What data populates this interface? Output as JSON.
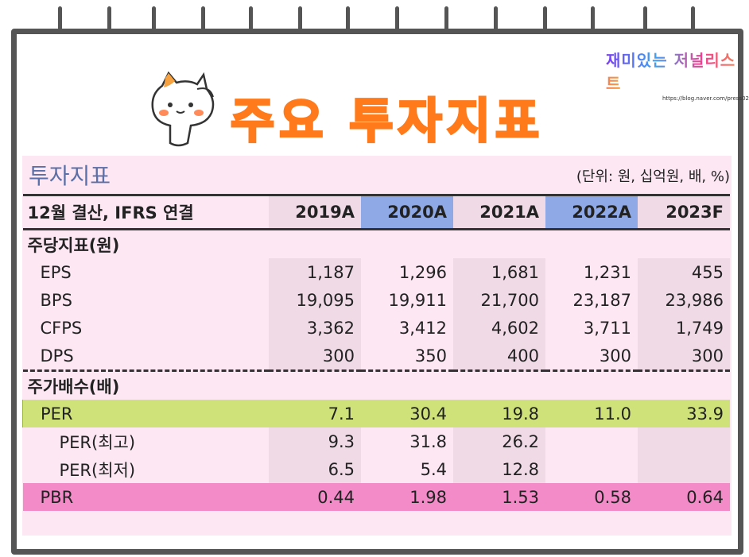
{
  "header": {
    "title": "주요 투자지표",
    "logo_text": "재미있는 저널리스트",
    "logo_url": "https://blog.naver.com/press02"
  },
  "panel": {
    "title": "투자지표",
    "unit": "(단위: 원, 십억원, 배, %)"
  },
  "table": {
    "header_label": "12월 결산, IFRS 연결",
    "years": [
      "2019A",
      "2020A",
      "2021A",
      "2022A",
      "2023F"
    ],
    "section1": "주당지표(원)",
    "section2": "주가배수(배)",
    "rows": [
      {
        "label": "EPS",
        "values": [
          "1,187",
          "1,296",
          "1,681",
          "1,231",
          "455"
        ]
      },
      {
        "label": "BPS",
        "values": [
          "19,095",
          "19,911",
          "21,700",
          "23,187",
          "23,986"
        ]
      },
      {
        "label": "CFPS",
        "values": [
          "3,362",
          "3,412",
          "4,602",
          "3,711",
          "1,749"
        ]
      },
      {
        "label": "DPS",
        "values": [
          "300",
          "350",
          "400",
          "300",
          "300"
        ]
      },
      {
        "label": "PER",
        "values": [
          "7.1",
          "30.4",
          "19.8",
          "11.0",
          "33.9"
        ]
      },
      {
        "label": "PER(최고)",
        "values": [
          "9.3",
          "31.8",
          "26.2",
          "",
          ""
        ]
      },
      {
        "label": "PER(최저)",
        "values": [
          "6.5",
          "5.4",
          "12.8",
          "",
          ""
        ]
      },
      {
        "label": "PBR",
        "values": [
          "0.44",
          "1.98",
          "1.53",
          "0.58",
          "0.64"
        ]
      }
    ]
  }
}
